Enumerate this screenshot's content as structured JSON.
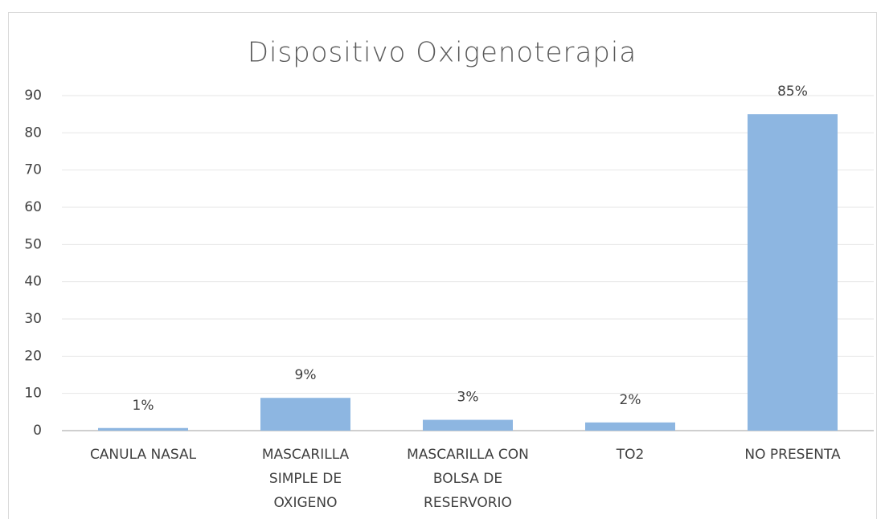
{
  "chart_data": {
    "type": "bar",
    "title": "Dispositivo Oxigenoterapia",
    "categories": [
      "CANULA NASAL",
      "MASCARILLA SIMPLE DE OXIGENO",
      "MASCARILLA CON BOLSA DE RESERVORIO",
      "TO2",
      "NO PRESENTA"
    ],
    "values": [
      0.7,
      8.8,
      2.9,
      2.2,
      85
    ],
    "value_labels": [
      "1%",
      "9%",
      "3%",
      "2%",
      "85%"
    ],
    "color": "#8db6e1",
    "ylim": [
      0,
      90
    ],
    "yticks": [
      0,
      10,
      20,
      30,
      40,
      50,
      60,
      70,
      80,
      90
    ],
    "grid": true
  }
}
